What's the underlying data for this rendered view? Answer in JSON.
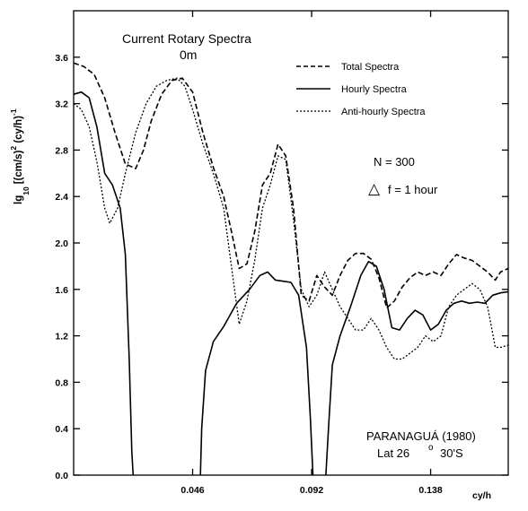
{
  "chart_data": {
    "type": "line",
    "title": "Current Rotary Spectra",
    "subtitle": "0m",
    "xlabel": "cy/h",
    "ylabel_parts": {
      "lg": "lg",
      "sub10": "10",
      "unit": "[(cm/s)",
      "sup2": "2",
      "unit2": " (cy/h)",
      "supm1": "-1"
    },
    "xlim": [
      0.0,
      0.168
    ],
    "ylim": [
      0.0,
      4.0
    ],
    "x_ticks": [
      0.046,
      0.092,
      0.138
    ],
    "x_tick_labels": [
      "0.046",
      "0.092",
      "0.138"
    ],
    "y_ticks": [
      0.0,
      0.4,
      0.8,
      1.2,
      1.6,
      2.0,
      2.4,
      2.8,
      3.2,
      3.6
    ],
    "y_tick_labels": [
      "0.0",
      "0.4",
      "0.8",
      "1.2",
      "1.6",
      "2.0",
      "2.4",
      "2.8",
      "3.2",
      "3.6"
    ],
    "grid": false,
    "legend_position": "top-right",
    "annotations": {
      "n_label": "N = 300",
      "delta_symbol": "△",
      "delta_label": "f = 1 hour",
      "location": "PARANAGUÁ  (1980)",
      "lat_label": "Lat  26",
      "lat_deg": "o",
      "lat_min": "30'S"
    },
    "series": [
      {
        "name": "Total Spectra",
        "style": "dashed",
        "x": [
          0.0,
          0.004,
          0.008,
          0.012,
          0.016,
          0.02,
          0.024,
          0.027,
          0.03,
          0.034,
          0.038,
          0.042,
          0.046,
          0.05,
          0.054,
          0.058,
          0.061,
          0.064,
          0.067,
          0.07,
          0.073,
          0.076,
          0.079,
          0.082,
          0.085,
          0.088,
          0.091,
          0.094,
          0.097,
          0.1,
          0.103,
          0.106,
          0.109,
          0.112,
          0.115,
          0.118,
          0.121,
          0.124,
          0.127,
          0.13,
          0.133,
          0.136,
          0.139,
          0.142,
          0.145,
          0.148,
          0.151,
          0.154,
          0.157,
          0.16,
          0.163,
          0.165,
          0.168
        ],
        "y": [
          3.55,
          3.52,
          3.45,
          3.25,
          2.95,
          2.68,
          2.64,
          2.8,
          3.05,
          3.28,
          3.4,
          3.42,
          3.3,
          2.95,
          2.65,
          2.4,
          2.1,
          1.78,
          1.82,
          2.1,
          2.5,
          2.6,
          2.85,
          2.75,
          2.3,
          1.55,
          1.5,
          1.72,
          1.62,
          1.55,
          1.72,
          1.85,
          1.91,
          1.91,
          1.86,
          1.7,
          1.44,
          1.5,
          1.62,
          1.7,
          1.75,
          1.72,
          1.75,
          1.72,
          1.82,
          1.9,
          1.87,
          1.85,
          1.8,
          1.75,
          1.68,
          1.75,
          1.78
        ]
      },
      {
        "name": "Hourly Spectra",
        "style": "solid",
        "x": [
          0.0,
          0.003,
          0.006,
          0.009,
          0.012,
          0.015,
          0.018,
          0.02,
          0.0215,
          0.0225,
          0.023,
          null,
          0.049,
          0.0495,
          0.051,
          0.054,
          0.058,
          0.063,
          0.068,
          0.072,
          0.075,
          0.078,
          0.081,
          0.084,
          0.087,
          0.09,
          0.0915,
          0.0925,
          null,
          0.0975,
          0.0985,
          0.1,
          0.103,
          0.107,
          0.111,
          0.114,
          0.117,
          0.12,
          0.123,
          0.126,
          0.129,
          0.132,
          0.135,
          0.138,
          0.141,
          0.144,
          0.147,
          0.15,
          0.153,
          0.156,
          0.159,
          0.162,
          0.165,
          0.168
        ],
        "y": [
          3.28,
          3.3,
          3.25,
          3.0,
          2.6,
          2.5,
          2.3,
          1.9,
          1.0,
          0.2,
          0.0,
          null,
          0.0,
          0.4,
          0.9,
          1.15,
          1.28,
          1.48,
          1.6,
          1.72,
          1.75,
          1.68,
          1.67,
          1.66,
          1.55,
          1.1,
          0.5,
          0.0,
          null,
          0.0,
          0.4,
          0.95,
          1.2,
          1.45,
          1.72,
          1.84,
          1.8,
          1.6,
          1.27,
          1.25,
          1.35,
          1.42,
          1.38,
          1.25,
          1.3,
          1.42,
          1.48,
          1.5,
          1.48,
          1.49,
          1.48,
          1.55,
          1.57,
          1.58
        ]
      },
      {
        "name": "Anti-hourly Spectra",
        "style": "dotted",
        "x": [
          0.0,
          0.003,
          0.006,
          0.009,
          0.012,
          0.014,
          0.017,
          0.02,
          0.024,
          0.028,
          0.032,
          0.036,
          0.04,
          0.043,
          0.046,
          0.05,
          0.054,
          0.058,
          0.061,
          0.064,
          0.067,
          0.07,
          0.073,
          0.076,
          0.079,
          0.082,
          0.085,
          0.088,
          0.091,
          0.094,
          0.097,
          0.1,
          0.103,
          0.106,
          0.109,
          0.112,
          0.115,
          0.118,
          0.121,
          0.124,
          0.127,
          0.13,
          0.133,
          0.136,
          0.139,
          0.142,
          0.145,
          0.148,
          0.151,
          0.154,
          0.157,
          0.16,
          0.163,
          0.165,
          0.168
        ],
        "y": [
          3.2,
          3.15,
          3.0,
          2.7,
          2.3,
          2.17,
          2.3,
          2.6,
          2.95,
          3.2,
          3.35,
          3.4,
          3.42,
          3.35,
          3.15,
          2.85,
          2.6,
          2.3,
          1.8,
          1.3,
          1.5,
          1.85,
          2.3,
          2.5,
          2.75,
          2.72,
          2.2,
          1.6,
          1.45,
          1.55,
          1.75,
          1.6,
          1.45,
          1.35,
          1.25,
          1.25,
          1.35,
          1.25,
          1.1,
          1.0,
          1.0,
          1.05,
          1.1,
          1.2,
          1.15,
          1.2,
          1.45,
          1.55,
          1.6,
          1.65,
          1.6,
          1.45,
          1.1,
          1.1,
          1.12
        ]
      }
    ]
  }
}
